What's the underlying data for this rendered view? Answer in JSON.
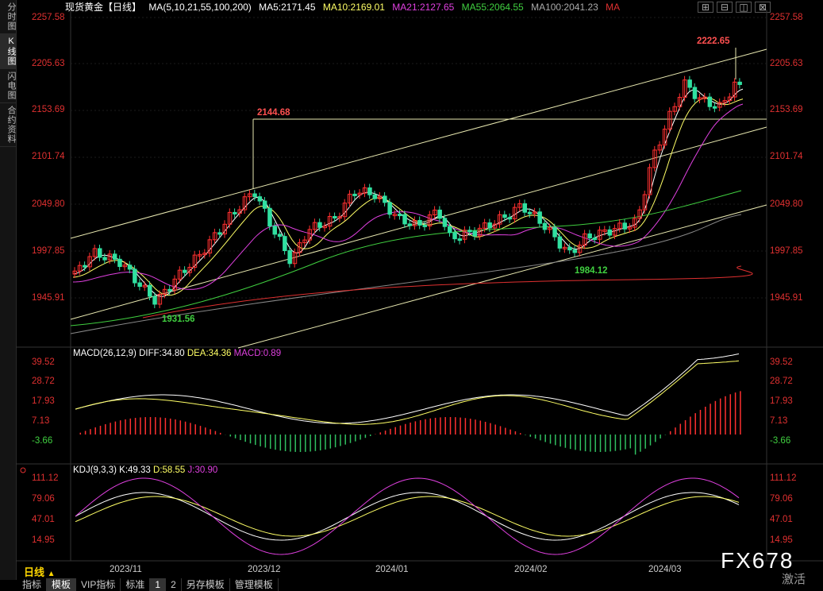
{
  "side_tabs": [
    "分时图",
    "K线图",
    "闪电图",
    "合约资料"
  ],
  "header": {
    "title": "现货黄金【日线】",
    "ma_label": "MA(5,10,21,55,100,200)",
    "ma5": "MA5:2171.45",
    "ma10": "MA10:2169.01",
    "ma21": "MA21:2127.65",
    "ma55": "MA55:2064.55",
    "ma100": "MA100:2041.23",
    "ma": "MA",
    "colors": {
      "ma5": "#ffffff",
      "ma10": "#ffff66",
      "ma21": "#e040e0",
      "ma55": "#40d040",
      "ma100": "#aaaaaa",
      "ma200": "#e03030"
    }
  },
  "window_buttons": [
    "⊞",
    "⊟",
    "◫",
    "⊠"
  ],
  "price_axis": [
    "2257.58",
    "2205.63",
    "2153.69",
    "2101.74",
    "2049.80",
    "1997.85",
    "1945.91"
  ],
  "price_annotations": {
    "high": "2222.65",
    "dec_high": "2144.68",
    "feb_low": "1984.12",
    "nov_low": "1931.56"
  },
  "macd": {
    "label": "MACD(26,12,9)",
    "diff": "DIFF:34.80",
    "dea": "DEA:34.36",
    "macd": "MACD:0.89",
    "axis": [
      "39.52",
      "28.72",
      "17.93",
      "7.13",
      "-3.66"
    ]
  },
  "kdj": {
    "label": "KDJ(9,3,3)",
    "k": "K:49.33",
    "d": "D:58.55",
    "j": "J:30.90",
    "axis": [
      "111.12",
      "79.06",
      "47.01",
      "14.95"
    ]
  },
  "dates": [
    "2023/11",
    "2023/12",
    "2024/01",
    "2024/02",
    "2024/03"
  ],
  "period": "日线",
  "bottom_tabs": [
    "指标",
    "模板",
    "VIP指标",
    "标准",
    "1",
    "2",
    "另存模板",
    "管理模板"
  ],
  "watermark": "FX678",
  "watermark_sub": "激活"
}
